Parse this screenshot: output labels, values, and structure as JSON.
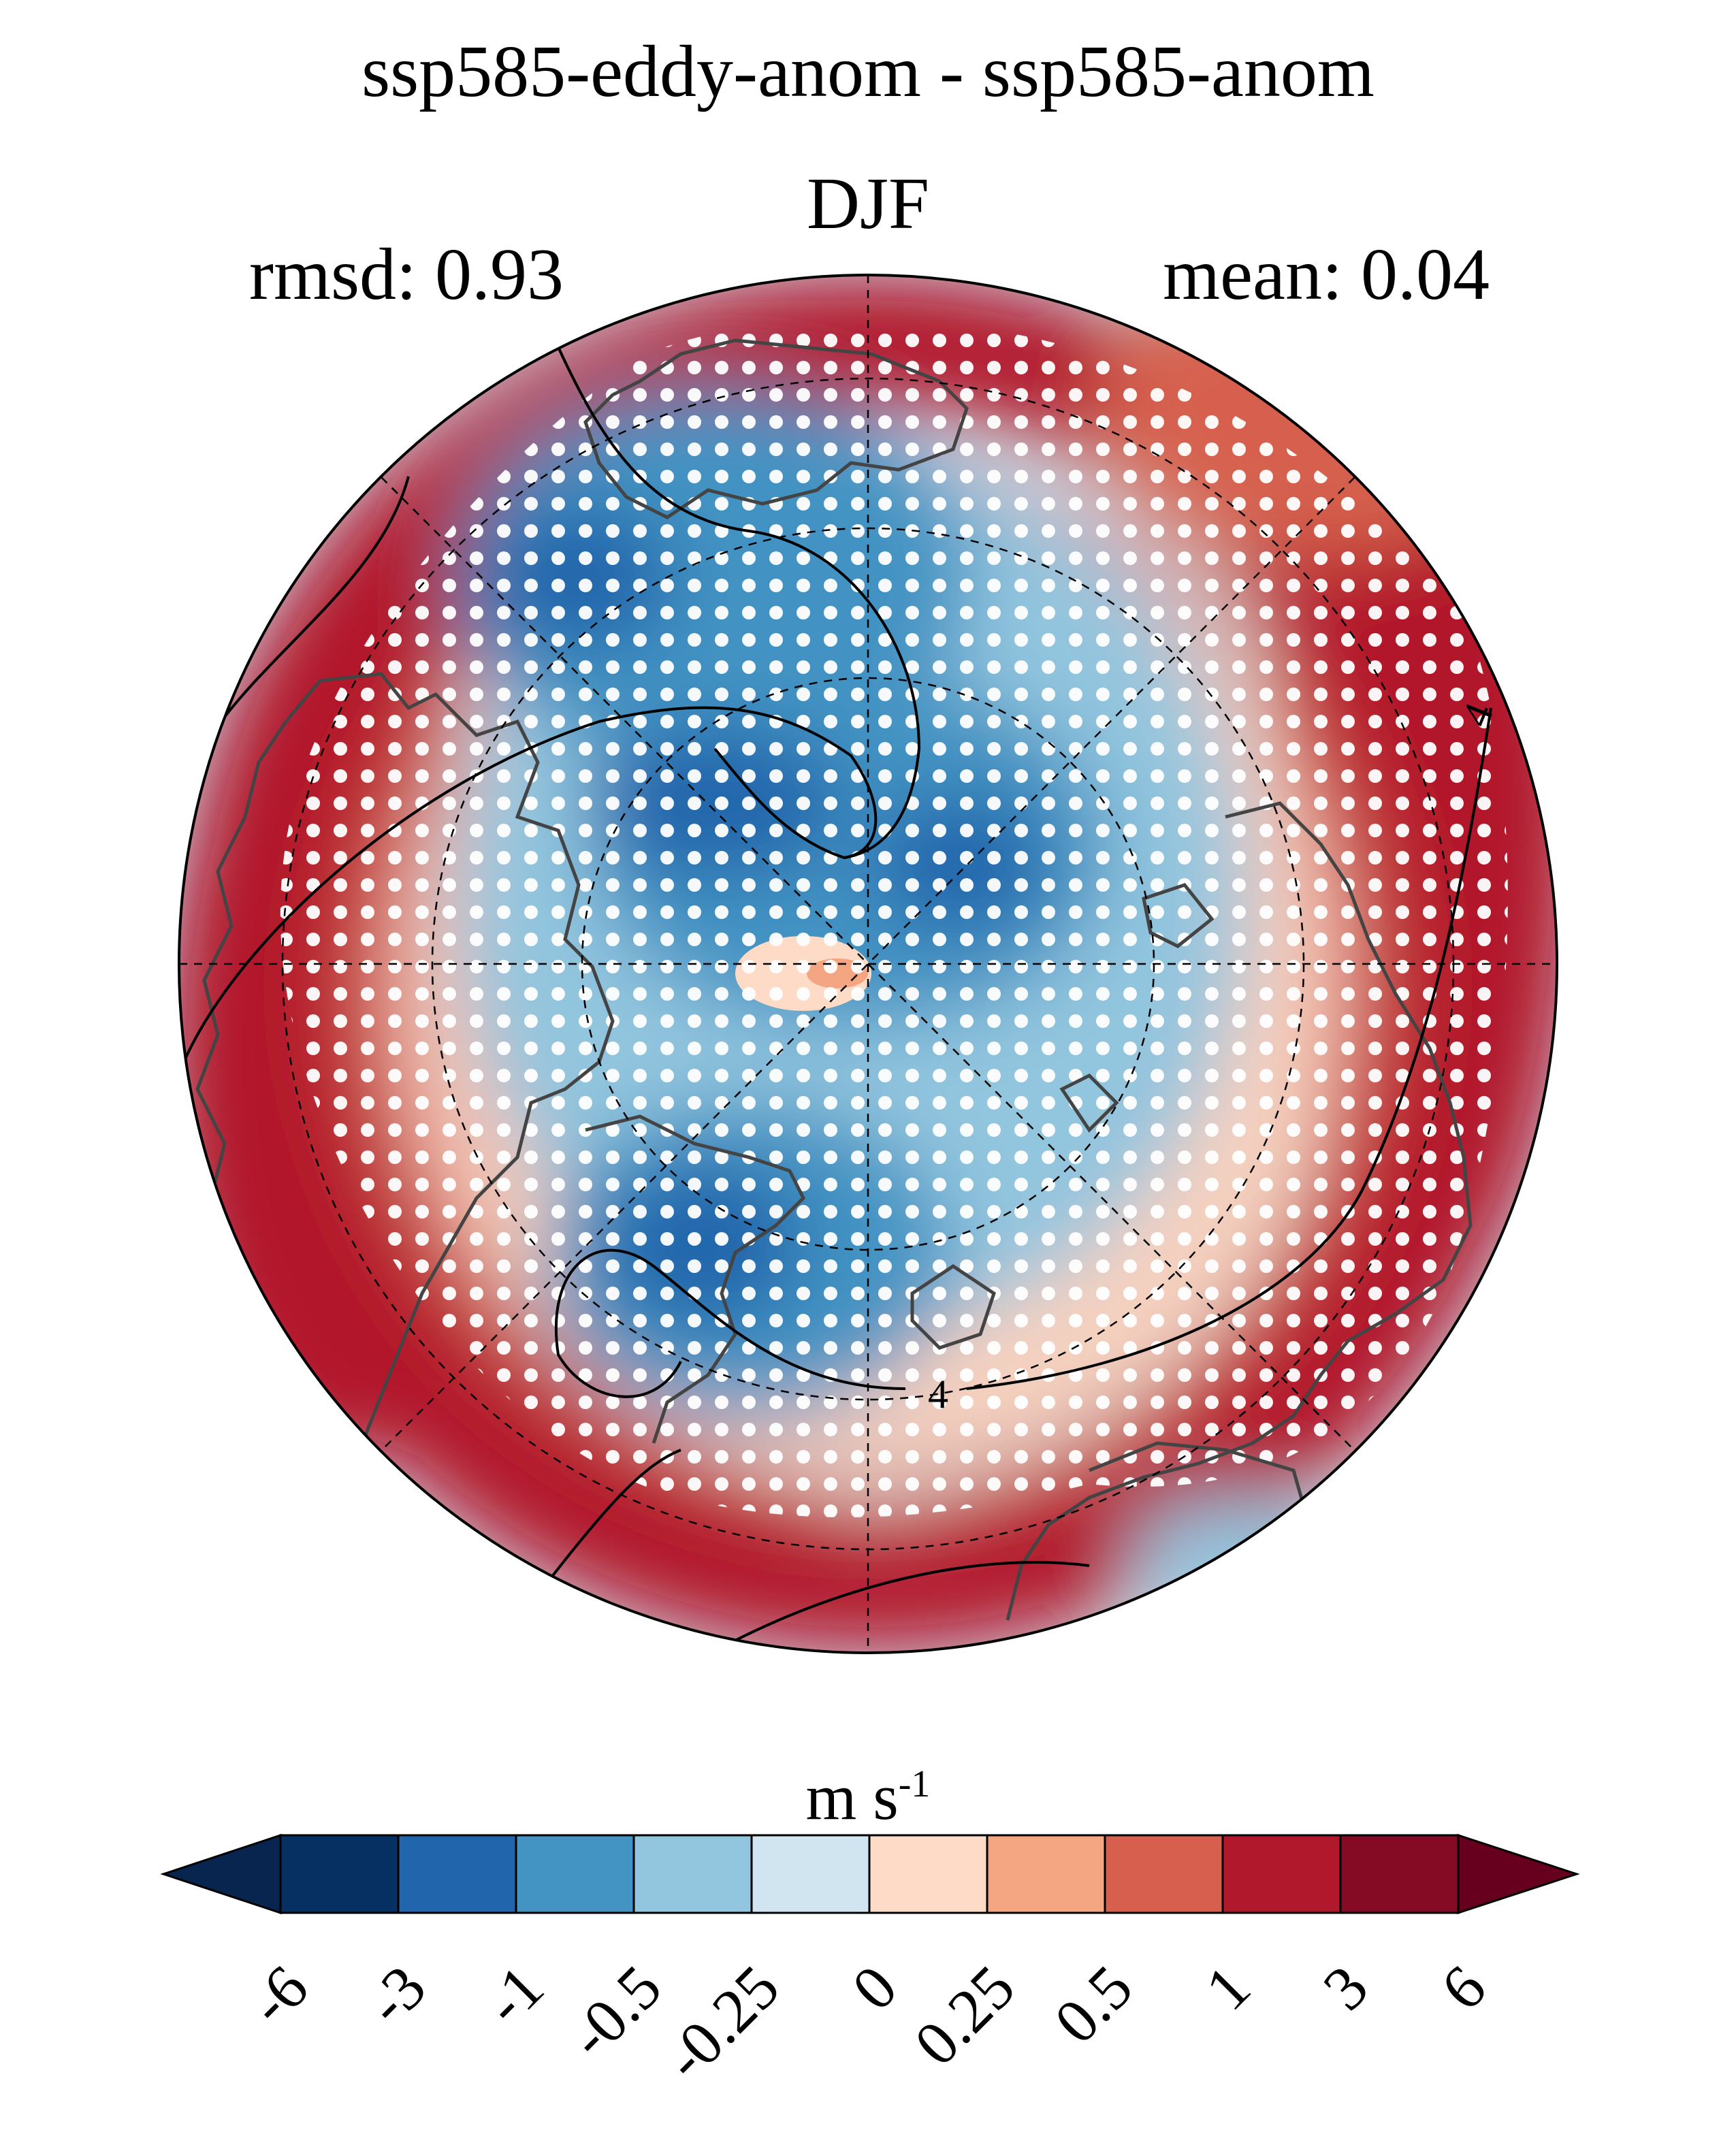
{
  "title": "ssp585-eddy-anom - ssp585-anom",
  "season": "DJF",
  "stats": {
    "rmsd": "rmsd: 0.93",
    "mean": "mean: 0.04"
  },
  "colorbar": {
    "units_main": "m s",
    "units_exp": "-1",
    "ticks": [
      "-6",
      "-3",
      "-1",
      "-0.5",
      "-0.25",
      "0",
      "0.25",
      "0.5",
      "1",
      "3",
      "6"
    ],
    "colors": [
      "#08254f",
      "#053061",
      "#2166ac",
      "#4393c3",
      "#92c5de",
      "#d1e5f0",
      "#fddbc7",
      "#f4a582",
      "#d6604d",
      "#b2182b",
      "#850b25",
      "#67001f"
    ],
    "extend": "both"
  },
  "map": {
    "projection": "north-polar-stereographic",
    "contour_label": "4",
    "stippling": "white dots mark significant regions",
    "colors": {
      "coast": "#444444",
      "stipple": "#ffffff",
      "contour": "#000000"
    }
  }
}
